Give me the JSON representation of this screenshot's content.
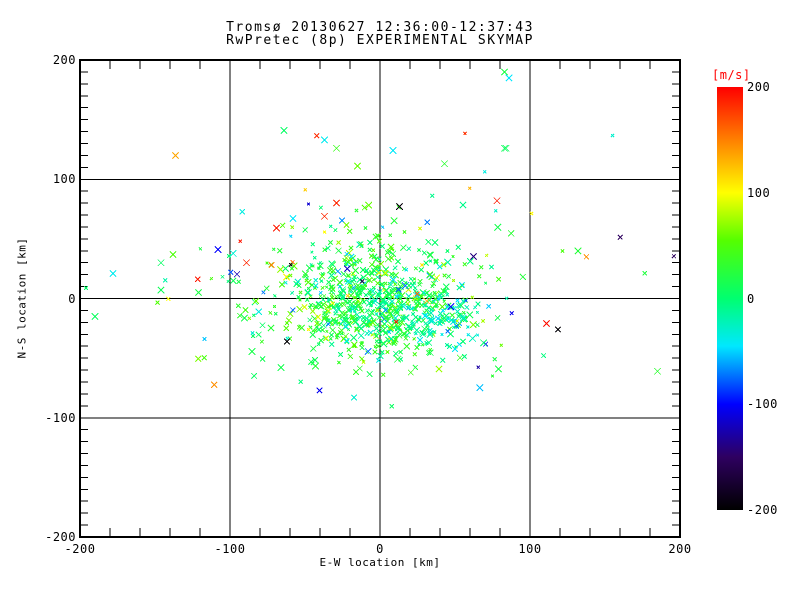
{
  "chart_data": {
    "type": "scatter",
    "marker": "x",
    "title": "Tromsø 20130627 12:36:00-12:37:43",
    "subtitle": "RwPretec (8p) EXPERIMENTAL SKYMAP",
    "xlabel": "E-W location [km]",
    "ylabel": "N-S location [km]",
    "xlim": [
      -200,
      200
    ],
    "ylim": [
      -200,
      200
    ],
    "xticks": [
      -200,
      -100,
      0,
      100,
      200
    ],
    "yticks": [
      -200,
      -100,
      0,
      100,
      200
    ],
    "x_minor_step": 20,
    "y_minor_step": 10,
    "grid": true,
    "grid_color": "#000000",
    "axis_color": "#000000",
    "background": "#ffffff",
    "colorbar": {
      "label": "[m/s]",
      "label_color": "#ff0000",
      "min": -200,
      "max": 200,
      "ticks": [
        200,
        100,
        0,
        -100,
        -200
      ],
      "stops": [
        {
          "v": -200,
          "color": "#000000"
        },
        {
          "v": -150,
          "color": "#2e0060"
        },
        {
          "v": -100,
          "color": "#0000ff"
        },
        {
          "v": -45,
          "color": "#00e8ff"
        },
        {
          "v": 0,
          "color": "#00ff70"
        },
        {
          "v": 55,
          "color": "#55ff00"
        },
        {
          "v": 100,
          "color": "#ffff00"
        },
        {
          "v": 150,
          "color": "#ff8000"
        },
        {
          "v": 200,
          "color": "#ff0000"
        }
      ]
    },
    "anchor_points": [
      {
        "x": 83,
        "y": 190,
        "v": 20
      },
      {
        "x": 86,
        "y": 185,
        "v": -45
      },
      {
        "x": 83,
        "y": 126,
        "v": 10
      },
      {
        "x": -64,
        "y": 141,
        "v": 5
      },
      {
        "x": -37,
        "y": 133,
        "v": -40
      },
      {
        "x": -29,
        "y": 126,
        "v": 40
      },
      {
        "x": -15,
        "y": 111,
        "v": 60
      },
      {
        "x": 43,
        "y": 113,
        "v": 30
      },
      {
        "x": 84,
        "y": 126,
        "v": 8
      },
      {
        "x": 78,
        "y": 82,
        "v": 190
      },
      {
        "x": -29,
        "y": 80,
        "v": 185
      },
      {
        "x": 13,
        "y": 77,
        "v": -195
      },
      {
        "x": -58,
        "y": 67,
        "v": -45
      },
      {
        "x": -37,
        "y": 69,
        "v": 185
      },
      {
        "x": -108,
        "y": 41,
        "v": -100
      },
      {
        "x": -89,
        "y": 30,
        "v": 185
      },
      {
        "x": -69,
        "y": 59,
        "v": 190
      },
      {
        "x": -178,
        "y": 21,
        "v": -40
      },
      {
        "x": -146,
        "y": 30,
        "v": 5
      },
      {
        "x": -146,
        "y": 7,
        "v": 12
      },
      {
        "x": -190,
        "y": -15,
        "v": 8
      },
      {
        "x": -121,
        "y": 5,
        "v": 20
      },
      {
        "x": 132,
        "y": 40,
        "v": 25
      },
      {
        "x": 185,
        "y": -61,
        "v": 30
      },
      {
        "x": 79,
        "y": -59,
        "v": 20
      },
      {
        "x": 111,
        "y": -21,
        "v": 195
      },
      {
        "x": -66,
        "y": -58,
        "v": 15
      }
    ],
    "point_cloud": {
      "seed": 1337,
      "clusters": [
        {
          "n": 600,
          "cx": -8,
          "cy": -2,
          "sx": 32,
          "sy": 24,
          "v_mean": 18,
          "v_sd": 28
        },
        {
          "n": 150,
          "cx": 0,
          "cy": 0,
          "sx": 58,
          "sy": 38,
          "v_mean": 8,
          "v_sd": 45
        },
        {
          "n": 90,
          "cx": 36,
          "cy": -18,
          "sx": 17,
          "sy": 13,
          "v_mean": -18,
          "v_sd": 22
        },
        {
          "n": 50,
          "cx": 0,
          "cy": 10,
          "sx": 105,
          "sy": 55,
          "v_uniform": [
            -200,
            200
          ]
        }
      ]
    }
  }
}
